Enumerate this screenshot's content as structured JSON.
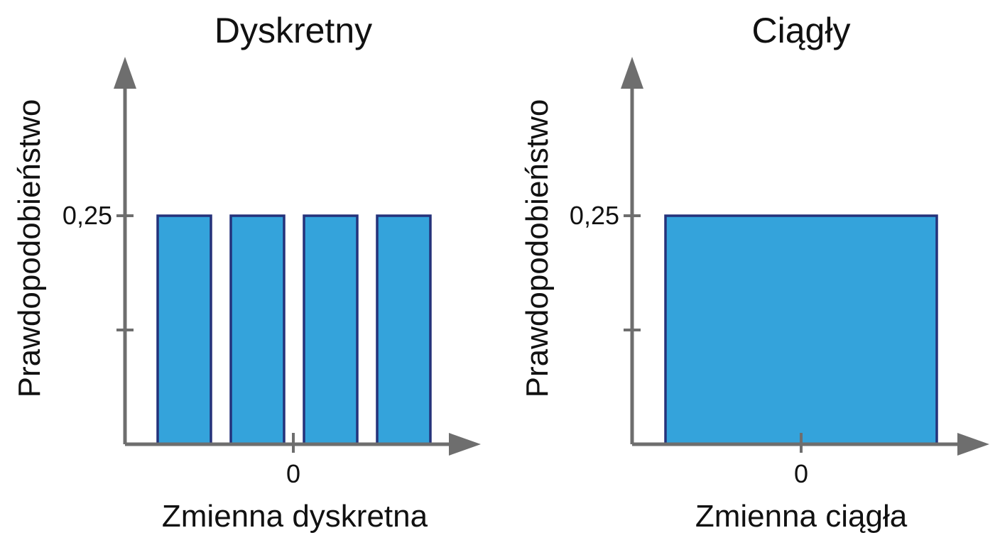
{
  "colors": {
    "bar_fill": "#34a3db",
    "bar_stroke": "#25327a",
    "axis": "#6e6e6e",
    "text": "#111111"
  },
  "chart_data": [
    {
      "type": "bar",
      "title": "Dyskretny",
      "xlabel": "Zmienna dyskretna",
      "ylabel": "Prawdopodobieństwo",
      "ylim": [
        0,
        0.5
      ],
      "y_ticks": [
        {
          "value": 0.125,
          "label": ""
        },
        {
          "value": 0.25,
          "label": "0,25"
        }
      ],
      "x_ticks": [
        {
          "value": 0,
          "label": "0"
        }
      ],
      "categories": [
        "",
        "",
        "",
        ""
      ],
      "values": [
        0.25,
        0.25,
        0.25,
        0.25
      ]
    },
    {
      "type": "area",
      "title": "Ciągły",
      "xlabel": "Zmienna ciągła",
      "ylabel": "Prawdopodobieństwo",
      "ylim": [
        0,
        0.5
      ],
      "y_ticks": [
        {
          "value": 0.125,
          "label": ""
        },
        {
          "value": 0.25,
          "label": "0,25"
        }
      ],
      "x_ticks": [
        {
          "value": 0,
          "label": "0"
        }
      ],
      "x": [
        -1,
        1
      ],
      "values": [
        0.25,
        0.25
      ]
    }
  ]
}
